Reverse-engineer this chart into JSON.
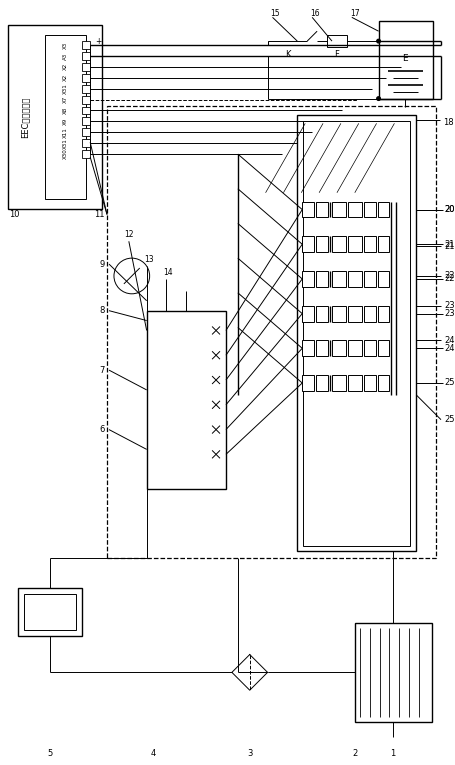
{
  "bg_color": "#ffffff",
  "line_color": "#000000",
  "fig_width": 4.55,
  "fig_height": 7.65,
  "pin_labels": [
    "X3",
    "A3",
    "X2",
    "X2",
    "X31",
    "X7",
    "X8",
    "X9",
    "X11",
    "X31",
    "X30"
  ],
  "label_10": "10",
  "label_11": "11",
  "label_12": "12",
  "label_13": "13",
  "label_14": "14",
  "label_15": "15",
  "label_16": "16",
  "label_17": "17",
  "label_18": "18",
  "label_20": "20",
  "label_21": "21",
  "label_22": "22",
  "label_23": "23",
  "label_24": "24",
  "label_25": "25",
  "label_1": "1",
  "label_2": "2",
  "label_3": "3",
  "label_4": "4",
  "label_5": "5",
  "label_6": "6",
  "label_7": "7",
  "label_8": "8",
  "label_9": "9",
  "label_K": "K",
  "label_F": "F",
  "label_E": "E",
  "label_plus": "+"
}
